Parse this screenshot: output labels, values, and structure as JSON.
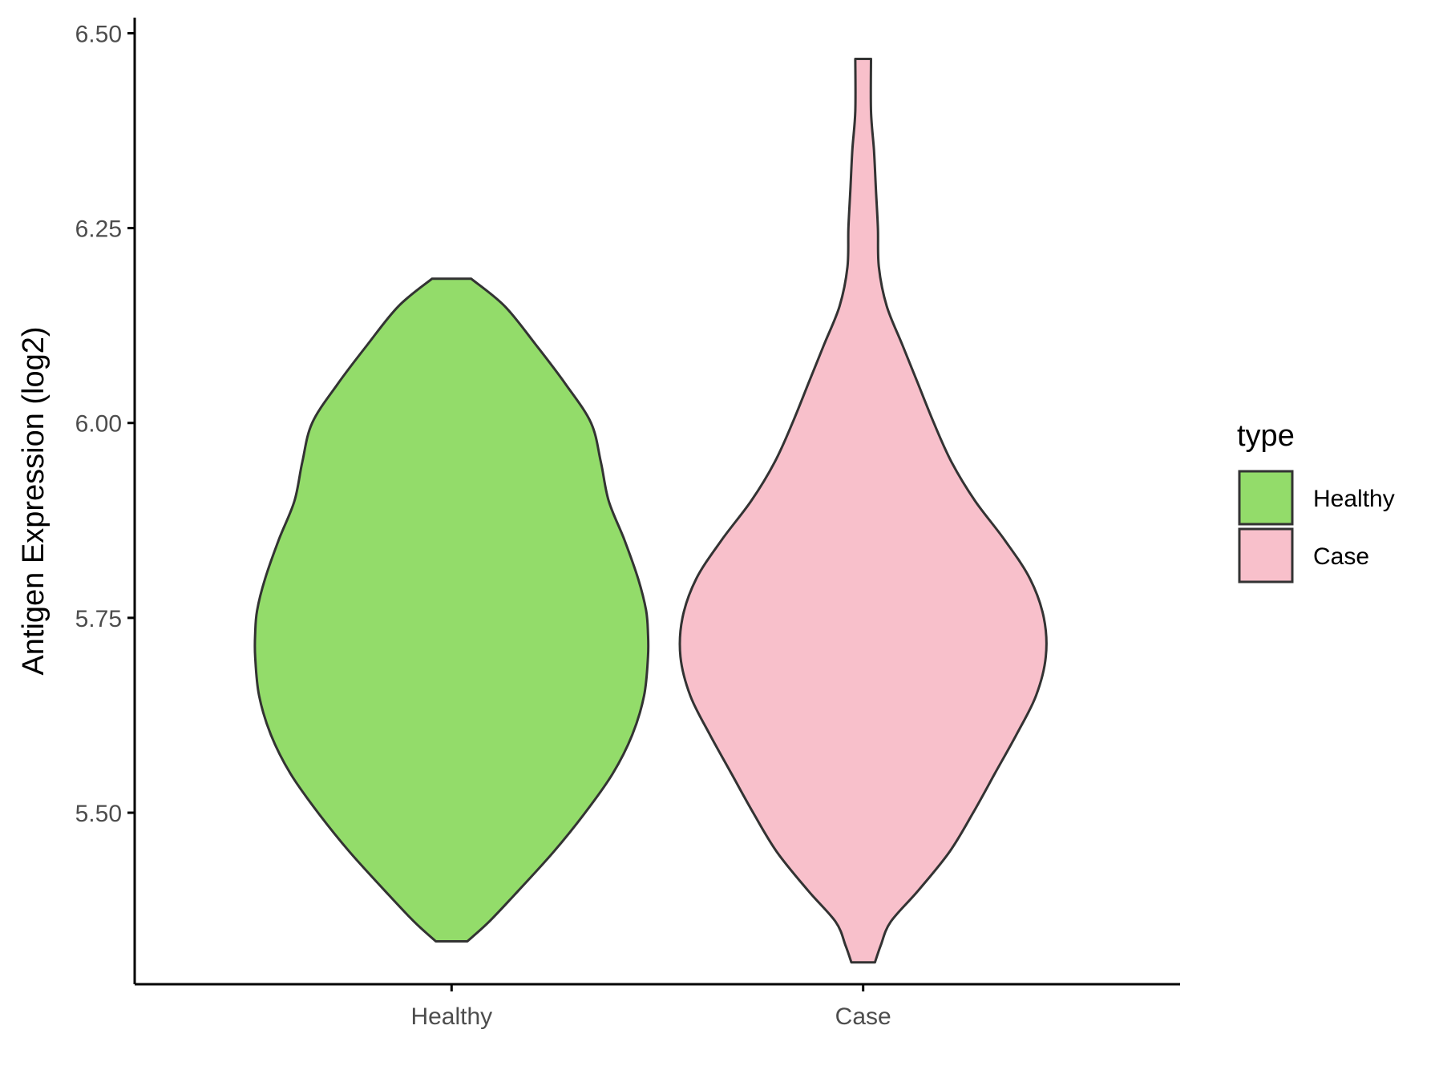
{
  "chart_data": {
    "type": "violin",
    "ylabel": "Antigen Expression (log2)",
    "xlabel": "",
    "ylim": [
      5.28,
      6.52
    ],
    "yticks": [
      "5.50",
      "5.75",
      "6.00",
      "6.25",
      "6.50"
    ],
    "categories": [
      "Healthy",
      "Case"
    ],
    "legend": {
      "title": "type",
      "position": "right",
      "entries": [
        "Healthy",
        "Case"
      ]
    },
    "grid": false,
    "series": [
      {
        "category": "Healthy",
        "color": "#93dc6a",
        "min": 5.335,
        "max": 6.185,
        "profile": [
          [
            5.335,
            0.08
          ],
          [
            5.36,
            0.19
          ],
          [
            5.4,
            0.34
          ],
          [
            5.45,
            0.52
          ],
          [
            5.5,
            0.68
          ],
          [
            5.55,
            0.82
          ],
          [
            5.6,
            0.92
          ],
          [
            5.65,
            0.98
          ],
          [
            5.7,
            1.0
          ],
          [
            5.73,
            1.0
          ],
          [
            5.76,
            0.99
          ],
          [
            5.8,
            0.95
          ],
          [
            5.85,
            0.88
          ],
          [
            5.9,
            0.8
          ],
          [
            5.95,
            0.76
          ],
          [
            6.0,
            0.71
          ],
          [
            6.05,
            0.58
          ],
          [
            6.1,
            0.43
          ],
          [
            6.15,
            0.27
          ],
          [
            6.185,
            0.1
          ]
        ]
      },
      {
        "category": "Case",
        "color": "#f8c0cb",
        "min": 5.308,
        "max": 6.467,
        "profile": [
          [
            5.308,
            0.06
          ],
          [
            5.33,
            0.09
          ],
          [
            5.36,
            0.14
          ],
          [
            5.4,
            0.28
          ],
          [
            5.45,
            0.44
          ],
          [
            5.5,
            0.56
          ],
          [
            5.55,
            0.67
          ],
          [
            5.6,
            0.78
          ],
          [
            5.65,
            0.88
          ],
          [
            5.7,
            0.93
          ],
          [
            5.75,
            0.92
          ],
          [
            5.8,
            0.85
          ],
          [
            5.85,
            0.72
          ],
          [
            5.9,
            0.57
          ],
          [
            5.95,
            0.45
          ],
          [
            6.0,
            0.36
          ],
          [
            6.05,
            0.28
          ],
          [
            6.1,
            0.2
          ],
          [
            6.15,
            0.12
          ],
          [
            6.2,
            0.08
          ],
          [
            6.25,
            0.075
          ],
          [
            6.3,
            0.065
          ],
          [
            6.35,
            0.055
          ],
          [
            6.4,
            0.04
          ],
          [
            6.467,
            0.04
          ]
        ]
      }
    ]
  }
}
